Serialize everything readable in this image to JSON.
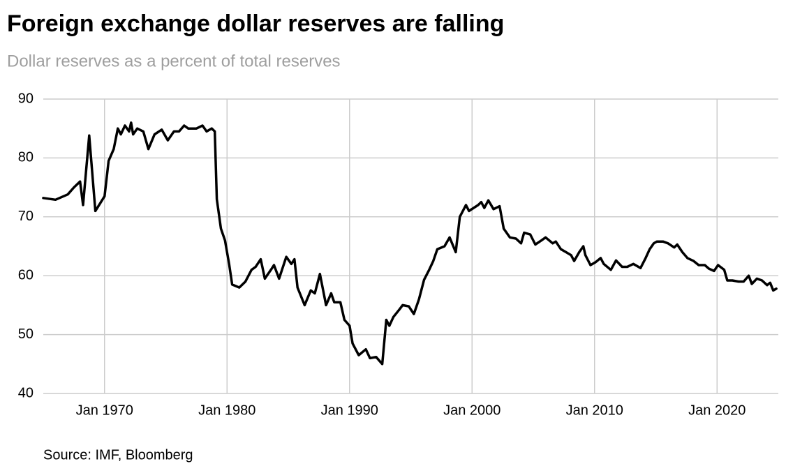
{
  "chart_data": {
    "type": "line",
    "title": "Foreign exchange dollar reserves are falling",
    "subtitle": "Dollar reserves as a percent of total reserves",
    "source": "Source: IMF, Bloomberg",
    "color": "#000000",
    "grid": true,
    "x": [
      "1965-01",
      "1966-01",
      "1967-01",
      "1967-07",
      "1968-01",
      "1968-04",
      "1968-10",
      "1969-04",
      "1970-01",
      "1970-05",
      "1970-10",
      "1971-02",
      "1971-05",
      "1971-09",
      "1972-01",
      "1972-03",
      "1972-05",
      "1972-09",
      "1973-03",
      "1973-08",
      "1974-02",
      "1974-09",
      "1975-03",
      "1975-09",
      "1976-02",
      "1976-07",
      "1976-11",
      "1977-07",
      "1978-01",
      "1978-05",
      "1978-10",
      "1979-01",
      "1979-03",
      "1979-07",
      "1979-11",
      "1980-03",
      "1980-06",
      "1981-01",
      "1981-07",
      "1982-01",
      "1982-05",
      "1982-10",
      "1983-02",
      "1983-08",
      "1983-11",
      "1984-04",
      "1984-11",
      "1985-04",
      "1985-07",
      "1985-10",
      "1986-05",
      "1986-11",
      "1987-03",
      "1987-08",
      "1988-02",
      "1988-07",
      "1988-10",
      "1989-04",
      "1989-08",
      "1990-01",
      "1990-04",
      "1990-10",
      "1991-05",
      "1991-09",
      "1992-03",
      "1992-09",
      "1993-01",
      "1993-04",
      "1993-08",
      "1994-02",
      "1994-05",
      "1994-11",
      "1995-04",
      "1995-09",
      "1996-02",
      "1996-07",
      "1996-11",
      "1997-03",
      "1997-10",
      "1998-03",
      "1998-09",
      "1999-01",
      "1999-07",
      "1999-10",
      "2000-07",
      "2000-10",
      "2001-01",
      "2001-05",
      "2001-10",
      "2002-04",
      "2002-08",
      "2003-02",
      "2003-08",
      "2004-01",
      "2004-04",
      "2004-10",
      "2005-03",
      "2005-09",
      "2006-01",
      "2006-08",
      "2006-11",
      "2007-04",
      "2007-09",
      "2008-02",
      "2008-05",
      "2008-10",
      "2009-02",
      "2009-04",
      "2009-09",
      "2010-02",
      "2010-07",
      "2010-10",
      "2011-05",
      "2011-10",
      "2012-04",
      "2012-09",
      "2013-03",
      "2013-10",
      "2014-03",
      "2014-07",
      "2014-11",
      "2015-02",
      "2015-08",
      "2016-01",
      "2016-07",
      "2016-10",
      "2017-03",
      "2017-08",
      "2018-02",
      "2018-07",
      "2019-01",
      "2019-05",
      "2019-10",
      "2020-02",
      "2020-08",
      "2020-11",
      "2021-04",
      "2021-10",
      "2022-03",
      "2022-08",
      "2022-11",
      "2023-04",
      "2023-09",
      "2024-02",
      "2024-05",
      "2024-08",
      "2024-11"
    ],
    "values": [
      73.2,
      72.9,
      73.8,
      75.0,
      76.0,
      72.0,
      83.8,
      71.0,
      73.5,
      79.5,
      81.5,
      85.0,
      84.0,
      85.5,
      84.5,
      86.0,
      84.0,
      85.0,
      84.5,
      81.5,
      84.0,
      84.8,
      83.0,
      84.5,
      84.5,
      85.5,
      85.0,
      85.0,
      85.5,
      84.5,
      85.0,
      84.5,
      73.0,
      68.0,
      66.0,
      62.0,
      58.5,
      58.0,
      59.0,
      61.0,
      61.5,
      62.8,
      59.5,
      61.0,
      61.8,
      59.5,
      63.2,
      62.0,
      62.8,
      58.0,
      55.0,
      57.5,
      57.0,
      60.3,
      55.0,
      57.0,
      55.5,
      55.5,
      52.5,
      51.5,
      48.5,
      46.5,
      47.5,
      46.0,
      46.2,
      45.0,
      52.5,
      51.5,
      53.0,
      54.3,
      55.0,
      54.8,
      53.5,
      56.0,
      59.3,
      61.0,
      62.5,
      64.5,
      65.0,
      66.5,
      64.0,
      70.0,
      72.0,
      71.0,
      72.0,
      72.5,
      71.5,
      72.8,
      71.3,
      71.8,
      68.0,
      66.5,
      66.3,
      65.5,
      67.3,
      67.0,
      65.3,
      66.0,
      66.5,
      65.5,
      65.8,
      64.5,
      64.0,
      63.5,
      62.5,
      64.0,
      65.0,
      63.5,
      61.8,
      62.3,
      63.0,
      62.0,
      61.0,
      62.6,
      61.5,
      61.5,
      62.0,
      61.3,
      63.0,
      64.5,
      65.5,
      65.8,
      65.8,
      65.5,
      64.8,
      65.3,
      64.0,
      63.0,
      62.5,
      61.8,
      61.8,
      61.2,
      60.8,
      61.8,
      61.0,
      59.2,
      59.2,
      59.0,
      59.0,
      60.0,
      58.6,
      59.5,
      59.2,
      58.4,
      58.8,
      57.5,
      57.8
    ],
    "xlim": [
      "1965-01",
      "2025-01"
    ],
    "xticks": [
      {
        "value": "1970-01",
        "label": "Jan 1970"
      },
      {
        "value": "1980-01",
        "label": "Jan 1980"
      },
      {
        "value": "1990-01",
        "label": "Jan 1990"
      },
      {
        "value": "2000-01",
        "label": "Jan 2000"
      },
      {
        "value": "2010-01",
        "label": "Jan 2010"
      },
      {
        "value": "2020-01",
        "label": "Jan 2020"
      }
    ],
    "ylim": [
      40,
      90
    ],
    "yticks": [
      40,
      50,
      60,
      70,
      80,
      90
    ]
  }
}
